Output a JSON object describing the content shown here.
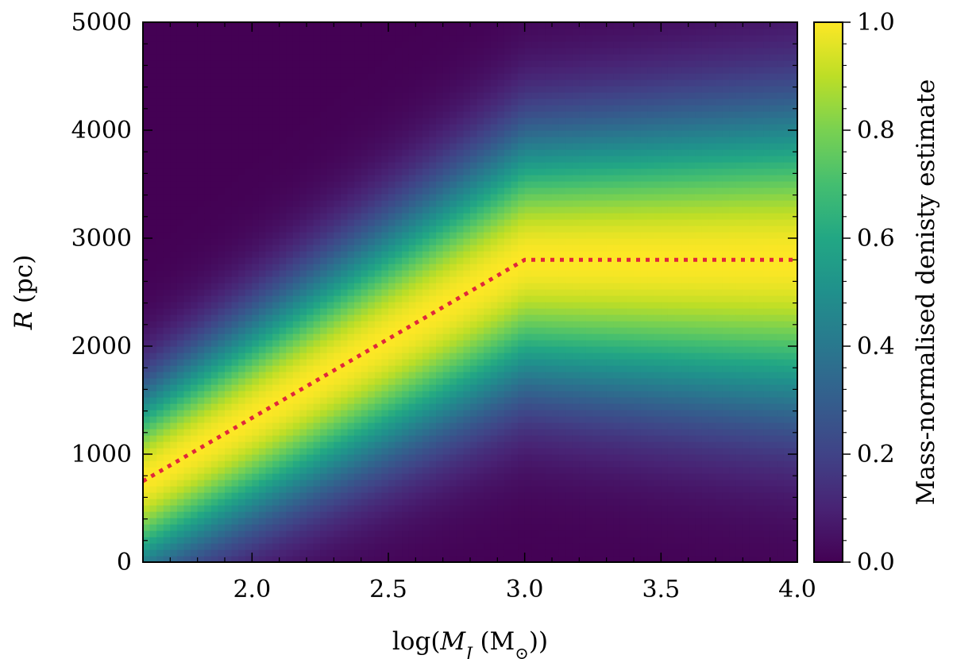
{
  "chart_data": {
    "type": "heatmap",
    "xlabel": "log(M_J (M_⊙))",
    "ylabel": "R (pc)",
    "colorbar_label": "Mass-normalised denisty estimate",
    "colormap": "viridis",
    "xlim": [
      1.6,
      4.0
    ],
    "ylim": [
      0,
      5000
    ],
    "clim": [
      0.0,
      1.0
    ],
    "x_ticks": [
      2.0,
      2.5,
      3.0,
      3.5,
      4.0
    ],
    "x_tick_labels": [
      "2.0",
      "2.5",
      "3.0",
      "3.5",
      "4.0"
    ],
    "y_ticks": [
      0,
      1000,
      2000,
      3000,
      4000,
      5000
    ],
    "y_tick_labels": [
      "0",
      "1000",
      "2000",
      "3000",
      "4000",
      "5000"
    ],
    "colorbar_ticks": [
      0.0,
      0.2,
      0.4,
      0.6,
      0.8,
      1.0
    ],
    "colorbar_tick_labels": [
      "0.0",
      "0.2",
      "0.4",
      "0.6",
      "0.8",
      "1.0"
    ],
    "ridge_line": {
      "style": "dotted",
      "color": "#e0283a",
      "x": [
        1.6,
        3.0,
        4.0
      ],
      "y": [
        750,
        2800,
        2800
      ]
    }
  }
}
